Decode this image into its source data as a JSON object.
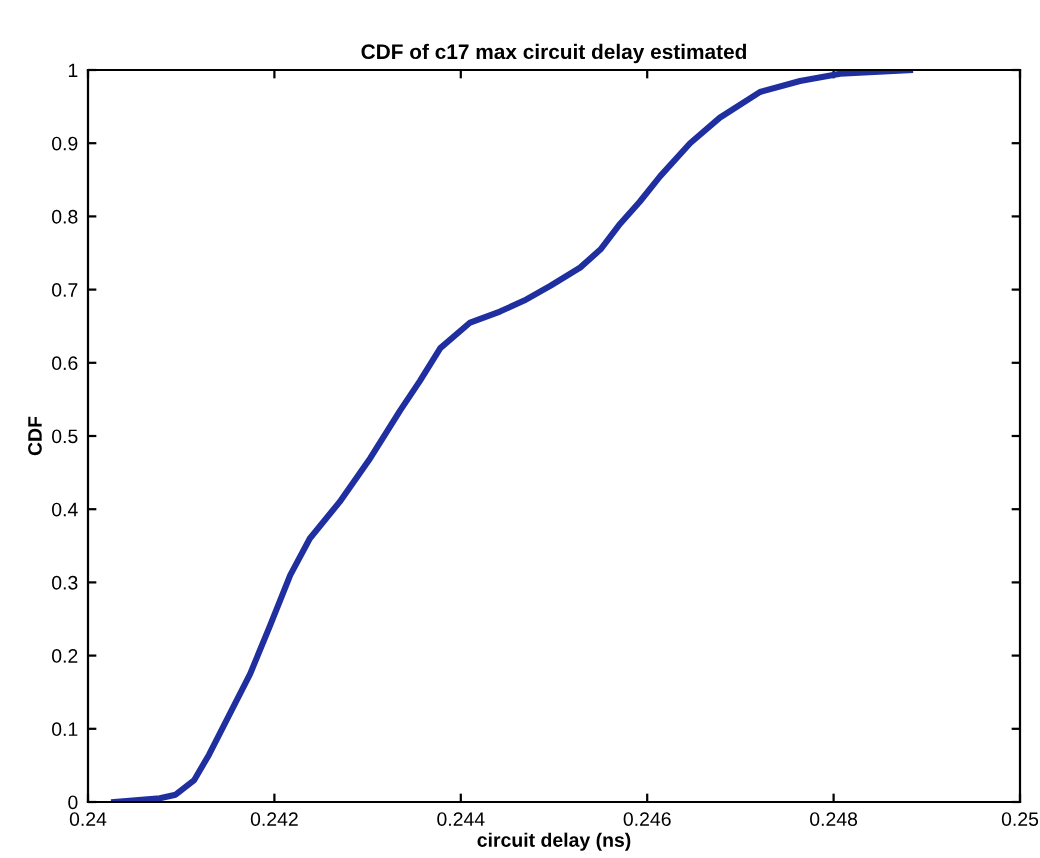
{
  "chart_data": {
    "type": "line",
    "title": "CDF of c17 max circuit delay estimated",
    "xlabel": "circuit delay (ns)",
    "ylabel": "CDF",
    "x": [
      0.24028,
      0.24077,
      0.24094,
      0.24114,
      0.2413,
      0.24152,
      0.24174,
      0.24195,
      0.24217,
      0.24238,
      0.2427,
      0.24303,
      0.24335,
      0.24356,
      0.24378,
      0.2441,
      0.24442,
      0.24468,
      0.24496,
      0.24528,
      0.2455,
      0.24571,
      0.24592,
      0.24614,
      0.24646,
      0.24678,
      0.24721,
      0.24764,
      0.24807,
      0.24882
    ],
    "series": [
      {
        "color": "#1f2fa0",
        "values": [
          0,
          0.005,
          0.01,
          0.03,
          0.065,
          0.12,
          0.175,
          0.24,
          0.31,
          0.36,
          0.41,
          0.47,
          0.535,
          0.575,
          0.62,
          0.655,
          0.67,
          0.685,
          0.705,
          0.73,
          0.755,
          0.79,
          0.82,
          0.855,
          0.9,
          0.935,
          0.97,
          0.985,
          0.995,
          1.0
        ]
      }
    ],
    "xlim": [
      0.24,
      0.25
    ],
    "xticks": [
      0.24,
      0.242,
      0.244,
      0.246,
      0.248,
      0.25
    ],
    "ylim": [
      0,
      1
    ],
    "yticks": [
      0,
      0.1,
      0.2,
      0.3,
      0.4,
      0.5,
      0.6,
      0.7,
      0.8,
      0.9,
      1
    ],
    "grid": false,
    "marker": "none",
    "line_style": "solid"
  }
}
